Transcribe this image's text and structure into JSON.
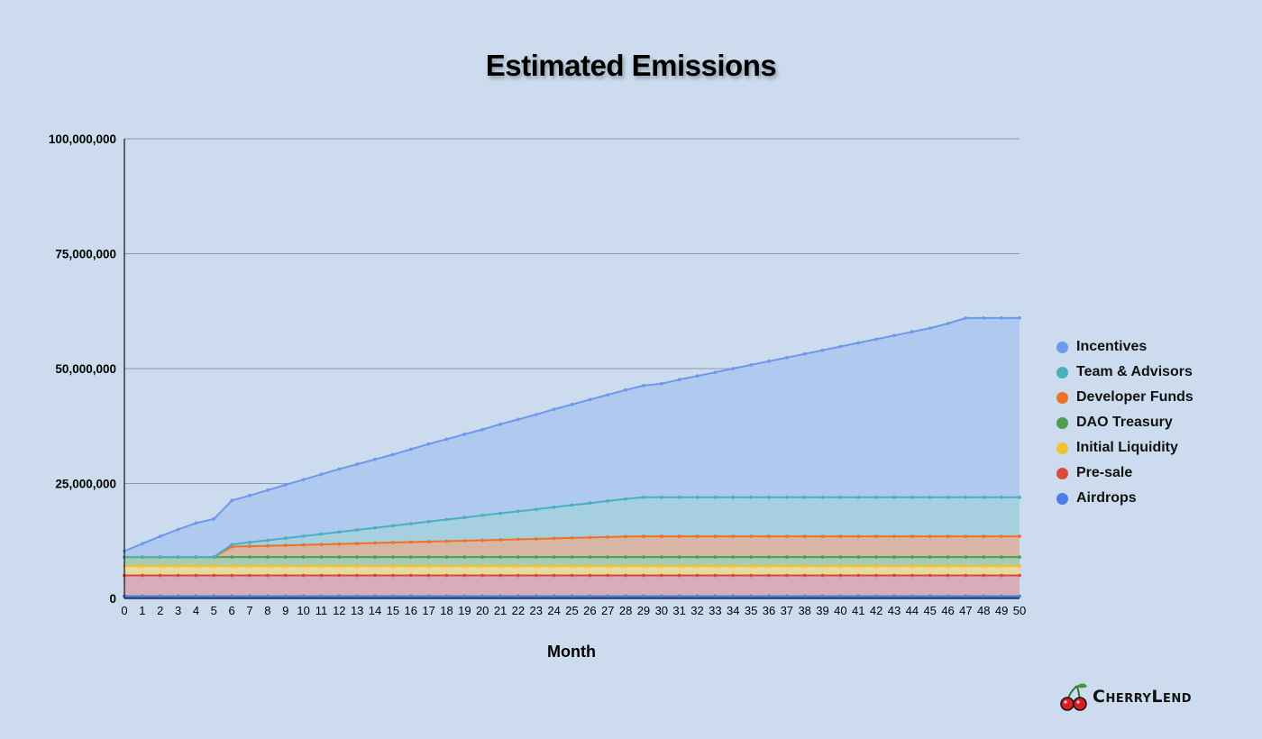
{
  "chart_data": {
    "type": "area",
    "stacked": true,
    "title": "Estimated Emissions",
    "xlabel": "Month",
    "ylabel": "",
    "ylim": [
      0,
      100000000
    ],
    "xlim": [
      0,
      50
    ],
    "yticks": [
      "0",
      "25,000,000",
      "50,000,000",
      "75,000,000",
      "100,000,000"
    ],
    "ytick_values": [
      0,
      25000000,
      50000000,
      75000000,
      100000000
    ],
    "grid": true,
    "legend_position": "right",
    "x": [
      0,
      1,
      2,
      3,
      4,
      5,
      6,
      7,
      8,
      9,
      10,
      11,
      12,
      13,
      14,
      15,
      16,
      17,
      18,
      19,
      20,
      21,
      22,
      23,
      24,
      25,
      26,
      27,
      28,
      29,
      30,
      31,
      32,
      33,
      34,
      35,
      36,
      37,
      38,
      39,
      40,
      41,
      42,
      43,
      44,
      45,
      46,
      47,
      48,
      49,
      50
    ],
    "series": [
      {
        "name": "Airdrops",
        "color": "#4a7ee3",
        "fill": "#3f6fd8",
        "values": [
          500000,
          500000,
          500000,
          500000,
          500000,
          500000,
          500000,
          500000,
          500000,
          500000,
          500000,
          500000,
          500000,
          500000,
          500000,
          500000,
          500000,
          500000,
          500000,
          500000,
          500000,
          500000,
          500000,
          500000,
          500000,
          500000,
          500000,
          500000,
          500000,
          500000,
          500000,
          500000,
          500000,
          500000,
          500000,
          500000,
          500000,
          500000,
          500000,
          500000,
          500000,
          500000,
          500000,
          500000,
          500000,
          500000,
          500000,
          500000,
          500000,
          500000,
          500000
        ]
      },
      {
        "name": "Pre-sale",
        "color": "#d94a3d",
        "fill": "#d6adb8",
        "values": [
          4500000,
          4500000,
          4500000,
          4500000,
          4500000,
          4500000,
          4500000,
          4500000,
          4500000,
          4500000,
          4500000,
          4500000,
          4500000,
          4500000,
          4500000,
          4500000,
          4500000,
          4500000,
          4500000,
          4500000,
          4500000,
          4500000,
          4500000,
          4500000,
          4500000,
          4500000,
          4500000,
          4500000,
          4500000,
          4500000,
          4500000,
          4500000,
          4500000,
          4500000,
          4500000,
          4500000,
          4500000,
          4500000,
          4500000,
          4500000,
          4500000,
          4500000,
          4500000,
          4500000,
          4500000,
          4500000,
          4500000,
          4500000,
          4500000,
          4500000,
          4500000
        ]
      },
      {
        "name": "Initial Liquidity",
        "color": "#f2c230",
        "fill": "#e6dca0",
        "values": [
          2000000,
          2000000,
          2000000,
          2000000,
          2000000,
          2000000,
          2000000,
          2000000,
          2000000,
          2000000,
          2000000,
          2000000,
          2000000,
          2000000,
          2000000,
          2000000,
          2000000,
          2000000,
          2000000,
          2000000,
          2000000,
          2000000,
          2000000,
          2000000,
          2000000,
          2000000,
          2000000,
          2000000,
          2000000,
          2000000,
          2000000,
          2000000,
          2000000,
          2000000,
          2000000,
          2000000,
          2000000,
          2000000,
          2000000,
          2000000,
          2000000,
          2000000,
          2000000,
          2000000,
          2000000,
          2000000,
          2000000,
          2000000,
          2000000,
          2000000,
          2000000
        ]
      },
      {
        "name": "DAO Treasury",
        "color": "#4a9e55",
        "fill": "#a9ccb0",
        "values": [
          2000000,
          2000000,
          2000000,
          2000000,
          2000000,
          2000000,
          2000000,
          2000000,
          2000000,
          2000000,
          2000000,
          2000000,
          2000000,
          2000000,
          2000000,
          2000000,
          2000000,
          2000000,
          2000000,
          2000000,
          2000000,
          2000000,
          2000000,
          2000000,
          2000000,
          2000000,
          2000000,
          2000000,
          2000000,
          2000000,
          2000000,
          2000000,
          2000000,
          2000000,
          2000000,
          2000000,
          2000000,
          2000000,
          2000000,
          2000000,
          2000000,
          2000000,
          2000000,
          2000000,
          2000000,
          2000000,
          2000000,
          2000000,
          2000000,
          2000000,
          2000000
        ]
      },
      {
        "name": "Developer Funds",
        "color": "#ee7226",
        "fill": "#d8b6a6",
        "values": [
          0,
          0,
          0,
          0,
          0,
          0,
          2250000,
          2350000,
          2450000,
          2550000,
          2650000,
          2750000,
          2850000,
          2950000,
          3050000,
          3150000,
          3250000,
          3350000,
          3450000,
          3550000,
          3650000,
          3750000,
          3850000,
          3950000,
          4050000,
          4150000,
          4250000,
          4350000,
          4450000,
          4500000,
          4500000,
          4500000,
          4500000,
          4500000,
          4500000,
          4500000,
          4500000,
          4500000,
          4500000,
          4500000,
          4500000,
          4500000,
          4500000,
          4500000,
          4500000,
          4500000,
          4500000,
          4500000,
          4500000,
          4500000,
          4500000
        ]
      },
      {
        "name": "Team & Advisors",
        "color": "#4ab0c0",
        "fill": "#a6cfe0",
        "values": [
          0,
          0,
          0,
          0,
          0,
          0,
          500000,
          850000,
          1200000,
          1550000,
          1900000,
          2250000,
          2600000,
          2950000,
          3300000,
          3650000,
          4000000,
          4350000,
          4700000,
          5050000,
          5400000,
          5750000,
          6100000,
          6450000,
          6800000,
          7150000,
          7500000,
          7850000,
          8200000,
          8500000,
          8500000,
          8500000,
          8500000,
          8500000,
          8500000,
          8500000,
          8500000,
          8500000,
          8500000,
          8500000,
          8500000,
          8500000,
          8500000,
          8500000,
          8500000,
          8500000,
          8500000,
          8500000,
          8500000,
          8500000,
          8500000
        ]
      },
      {
        "name": "Incentives",
        "color": "#6d99ec",
        "fill": "#b0c9ef",
        "values": [
          1300000,
          2900000,
          4500000,
          6000000,
          7400000,
          8300000,
          9550000,
          10200000,
          10900000,
          11600000,
          12300000,
          13000000,
          13700000,
          14300000,
          14900000,
          15500000,
          16200000,
          16900000,
          17500000,
          18100000,
          18700000,
          19400000,
          20000000,
          20600000,
          21300000,
          21900000,
          22500000,
          23100000,
          23700000,
          24300000,
          24700000,
          25600000,
          26400000,
          27200000,
          28000000,
          28800000,
          29600000,
          30400000,
          31200000,
          32000000,
          32800000,
          33600000,
          34400000,
          35200000,
          36000000,
          36800000,
          37800000,
          39000000,
          39000000,
          39000000,
          39000000
        ]
      }
    ]
  },
  "brand": {
    "name": "CherryLend",
    "icon": "cherry-icon"
  }
}
